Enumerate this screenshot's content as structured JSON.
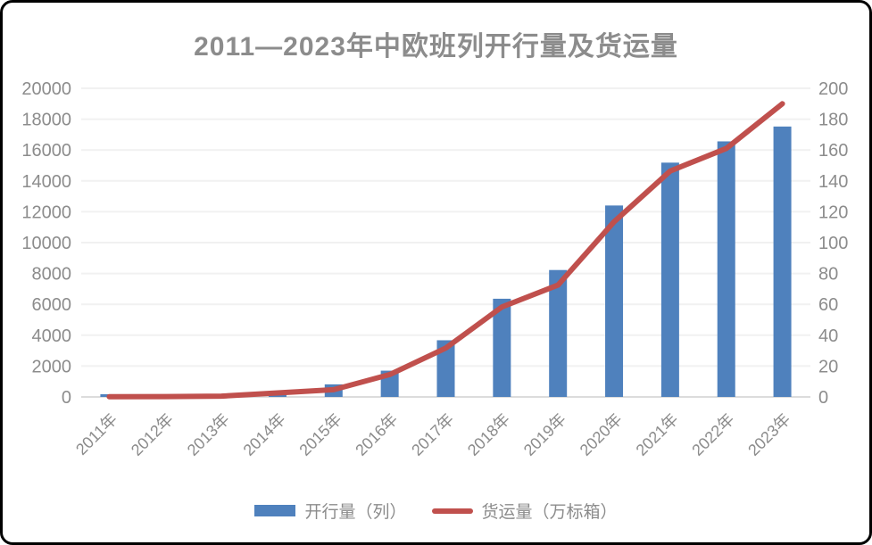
{
  "frame": {
    "background": "#ffffff",
    "border_color": "#000000"
  },
  "chart_data": {
    "type": "combo",
    "title": "2011—2023年中欧班列开行量及货运量",
    "categories": [
      "2011年",
      "2012年",
      "2013年",
      "2014年",
      "2015年",
      "2016年",
      "2017年",
      "2018年",
      "2019年",
      "2020年",
      "2021年",
      "2022年",
      "2023年"
    ],
    "series": [
      {
        "name": "开行量（列）",
        "type": "bar",
        "axis": "left",
        "color": "#4F81BD",
        "values": [
          17,
          42,
          80,
          308,
          815,
          1702,
          3673,
          6363,
          8225,
          12406,
          15183,
          16562,
          17523
        ]
      },
      {
        "name": "货运量（万标箱）",
        "type": "line",
        "axis": "right",
        "color": "#C0504D",
        "values": [
          0.14,
          0.25,
          0.5,
          2.6,
          4.7,
          14.5,
          31.7,
          58.3,
          72.5,
          113.5,
          146.4,
          161,
          190
        ]
      }
    ],
    "y_left_axis": {
      "min": 0,
      "max": 20000,
      "step": 2000,
      "tick_labels": [
        "0",
        "2000",
        "4000",
        "6000",
        "8000",
        "10000",
        "12000",
        "14000",
        "16000",
        "18000",
        "20000"
      ]
    },
    "y_right_axis": {
      "min": 0,
      "max": 200,
      "step": 20,
      "tick_labels": [
        "0",
        "20",
        "40",
        "60",
        "80",
        "100",
        "120",
        "140",
        "160",
        "180",
        "200"
      ]
    },
    "grid": "horizontal",
    "legend_position": "bottom",
    "text_color": "#8C8C8C",
    "gridline_color": "#F1F1F1",
    "baseline_color": "#DCDCDC"
  }
}
